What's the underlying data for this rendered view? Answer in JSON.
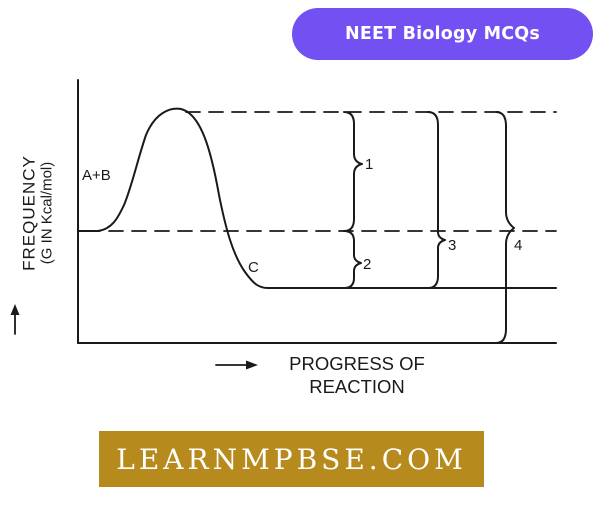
{
  "badge": {
    "label": "NEET Biology MCQs",
    "color": "#7350f2"
  },
  "axes": {
    "y_label": "FREQUENCY",
    "y_sublabel": "(G IN Kcal/mol)",
    "x_label_line1": "PROGRESS OF",
    "x_label_line2": "REACTION"
  },
  "labels": {
    "reactants": "A+B",
    "product": "C",
    "arrow_1": "1",
    "arrow_2": "2",
    "arrow_3": "3",
    "arrow_4": "4"
  },
  "banner": {
    "text": "LEARNMPBSE.COM",
    "color": "#b68a1c"
  }
}
